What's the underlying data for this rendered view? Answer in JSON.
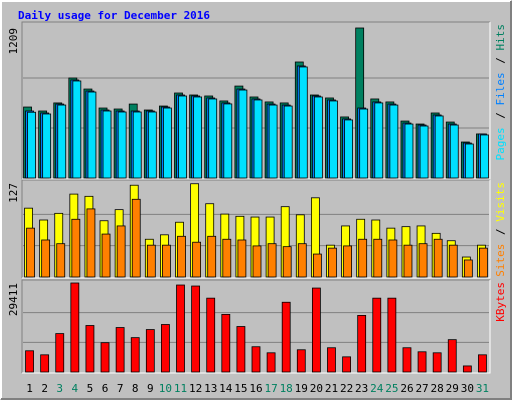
{
  "chart_data": [
    {
      "type": "bar",
      "title": "Daily usage for December 2016",
      "ylim": [
        0,
        1209
      ],
      "yticks": [
        1209
      ],
      "grid_divisions": 3,
      "legend_separator": "/",
      "series": [
        {
          "name": "Hits",
          "color": "#008060",
          "values": [
            572,
            540,
            605,
            806,
            717,
            564,
            556,
            596,
            548,
            580,
            685,
            669,
            661,
            621,
            741,
            653,
            613,
            605,
            935,
            669,
            645,
            492,
            1209,
            637,
            613,
            459,
            435,
            524,
            451,
            290,
            355
          ]
        },
        {
          "name": "Files",
          "color": "#0080ff",
          "values": [
            540,
            524,
            596,
            790,
            701,
            548,
            540,
            540,
            540,
            572,
            669,
            661,
            645,
            605,
            717,
            637,
            596,
            588,
            903,
            661,
            629,
            476,
            564,
            613,
            596,
            443,
            427,
            508,
            435,
            282,
            355
          ]
        },
        {
          "name": "Pages",
          "color": "#00e0ff",
          "values": [
            530,
            516,
            588,
            782,
            693,
            540,
            532,
            532,
            532,
            564,
            661,
            653,
            637,
            597,
            709,
            629,
            588,
            580,
            895,
            653,
            621,
            468,
            556,
            605,
            588,
            435,
            419,
            500,
            427,
            274,
            347
          ]
        }
      ]
    },
    {
      "type": "bar",
      "ylim": [
        0,
        127
      ],
      "yticks": [
        127
      ],
      "grid_divisions": 3,
      "legend_separator": "/",
      "series": [
        {
          "name": "Visits",
          "color": "#ffff00",
          "values": [
            93,
            77,
            86,
            112,
            109,
            76,
            91,
            124,
            51,
            57,
            74,
            126,
            99,
            85,
            82,
            81,
            81,
            95,
            84,
            107,
            43,
            69,
            78,
            77,
            66,
            68,
            69,
            59,
            49,
            27,
            43
          ]
        },
        {
          "name": "Sites",
          "color": "#ff8000",
          "values": [
            66,
            50,
            45,
            78,
            92,
            58,
            69,
            105,
            43,
            43,
            55,
            47,
            55,
            51,
            50,
            42,
            45,
            41,
            45,
            31,
            39,
            42,
            51,
            51,
            50,
            43,
            45,
            51,
            43,
            23,
            39
          ]
        }
      ]
    },
    {
      "type": "bar",
      "ylim": [
        0,
        29411
      ],
      "yticks": [
        29411
      ],
      "grid_divisions": 3,
      "categories": [
        "1",
        "2",
        "3",
        "4",
        "5",
        "6",
        "7",
        "8",
        "9",
        "10",
        "11",
        "12",
        "13",
        "14",
        "15",
        "16",
        "17",
        "18",
        "19",
        "20",
        "21",
        "22",
        "23",
        "24",
        "25",
        "26",
        "27",
        "28",
        "29",
        "30",
        "31"
      ],
      "category_colors": [
        "#000000",
        "#000000",
        "#008060",
        "#008060",
        "#000000",
        "#000000",
        "#000000",
        "#000000",
        "#000000",
        "#008060",
        "#008060",
        "#000000",
        "#000000",
        "#000000",
        "#000000",
        "#000000",
        "#008060",
        "#008060",
        "#000000",
        "#000000",
        "#000000",
        "#000000",
        "#000000",
        "#008060",
        "#008060",
        "#000000",
        "#000000",
        "#000000",
        "#000000",
        "#000000",
        "#008060"
      ],
      "series": [
        {
          "name": "KBytes",
          "color": "#ff0000",
          "values": [
            7014,
            5678,
            12692,
            29411,
            15364,
            9686,
            14696,
            11356,
            14028,
            15698,
            28743,
            28409,
            24401,
            19038,
            15030,
            8350,
            6346,
            23047,
            7348,
            27741,
            8016,
            5010,
            18704,
            24401,
            24401,
            8016,
            6680,
            6346,
            10688,
            2004,
            5678
          ]
        }
      ]
    }
  ]
}
